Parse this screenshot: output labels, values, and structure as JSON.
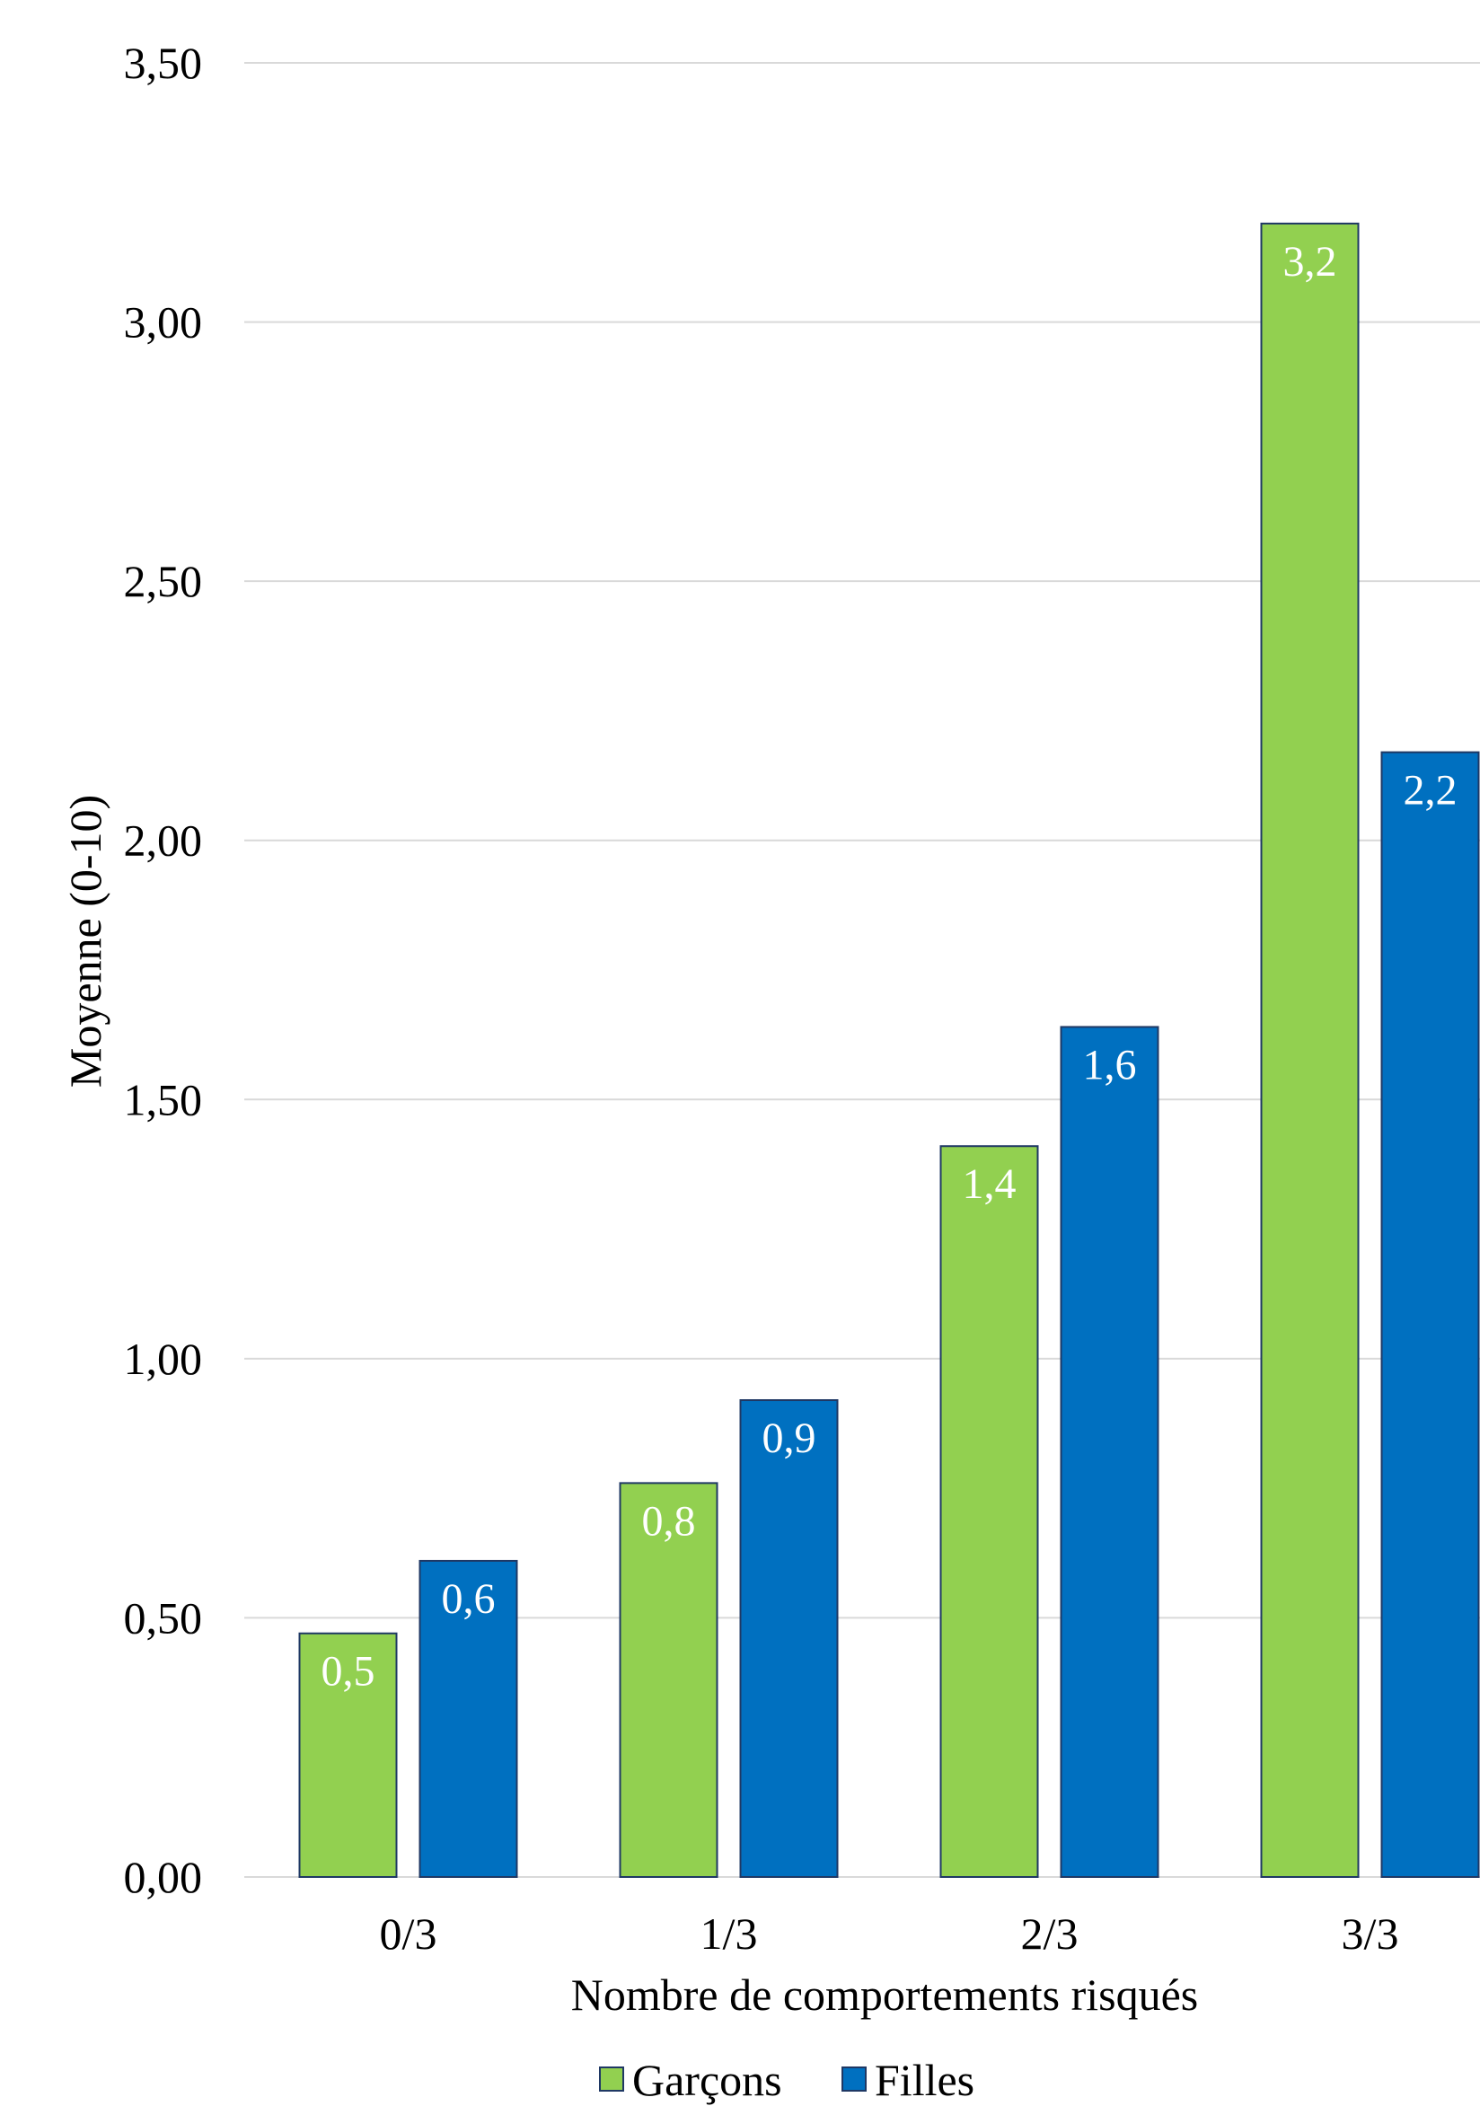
{
  "chart_data": {
    "type": "bar",
    "categories": [
      "0/3",
      "1/3",
      "2/3",
      "3/3"
    ],
    "series": [
      {
        "name": "Garçons",
        "values": [
          0.47,
          0.76,
          1.41,
          3.19
        ],
        "labels": [
          "0,5",
          "0,8",
          "1,4",
          "3,2"
        ],
        "color": "#92d050"
      },
      {
        "name": "Filles",
        "values": [
          0.61,
          0.92,
          1.64,
          2.17
        ],
        "labels": [
          "0,6",
          "0,9",
          "1,6",
          "2,2"
        ],
        "color": "#0070c0"
      }
    ],
    "ylim": [
      0,
      3.5
    ],
    "yticks": [
      "0,00",
      "0,50",
      "1,00",
      "1,50",
      "2,00",
      "2,50",
      "3,00",
      "3,50"
    ],
    "ytick_values": [
      0,
      0.5,
      1,
      1.5,
      2,
      2.5,
      3,
      3.5
    ],
    "xlabel": "Nombre de comportements risqués",
    "ylabel": "Moyenne (0-10)",
    "grid": true,
    "legend_position": "bottom",
    "bar_outline_color": "#1f3864",
    "grid_color": "#d9d9d9"
  }
}
